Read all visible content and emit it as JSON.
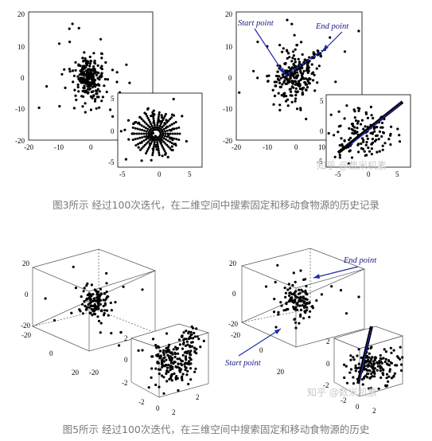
{
  "figure3": {
    "caption": "图3所示 经过100次迭代，在二维空间中搜索固定和移动食物源的历史记录",
    "left_main": {
      "ticks_x": [
        "-20",
        "-10",
        "0",
        "10",
        "20"
      ],
      "ticks_y": [
        "20",
        "10",
        "0",
        "-10",
        "-20"
      ]
    },
    "left_inset": {
      "ticks_x": [
        "-5",
        "0",
        "5"
      ],
      "ticks_y": [
        "5",
        "0",
        "-5"
      ]
    },
    "right_main": {
      "ticks_x": [
        "-20",
        "-10",
        "0",
        "10"
      ],
      "ticks_y": [
        "20",
        "10",
        "0",
        "-10",
        "-20"
      ],
      "start_label": "Start point",
      "end_label": "End point"
    },
    "right_inset": {
      "ticks_x": [
        "-5",
        "0",
        "5"
      ],
      "ticks_y": [
        "5",
        "0",
        "-5"
      ]
    },
    "watermark": "知乎 @数米机素"
  },
  "figure5": {
    "caption": "图5所示 经过100次迭代，在三维空间中搜索固定和移动食物源的历史",
    "left_cube": {
      "z_ticks": [
        "20",
        "0",
        "-20"
      ],
      "front_ticks": [
        "-20",
        "0",
        "20",
        "-20"
      ]
    },
    "left_inset": {
      "z_ticks": [
        "2",
        "0",
        "-2"
      ],
      "x_ticks": [
        "-2",
        "0",
        "2",
        "2"
      ]
    },
    "right_cube": {
      "z_ticks": [
        "20",
        "0",
        "-20"
      ],
      "front_ticks": [
        "-20",
        "0",
        "20"
      ],
      "start_label": "Start point",
      "end_label": "End point"
    },
    "right_inset": {
      "z_ticks": [
        "2",
        "0",
        "-2"
      ],
      "x_ticks": [
        "-2",
        "0",
        "2"
      ]
    },
    "watermark": "知乎 @数米机素"
  },
  "colors": {
    "dots": "#000000",
    "path": "#1f2aa8",
    "caption": "#7a7a7a"
  }
}
